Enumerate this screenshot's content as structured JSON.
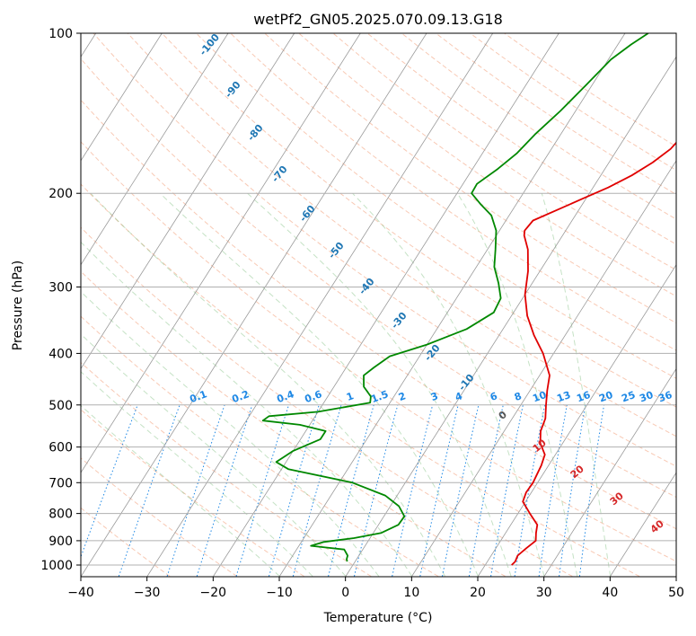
{
  "chart_data": {
    "type": "line",
    "title": "wetPf2_GN05.2025.070.09.13.G18",
    "xlabel": "Temperature (°C)",
    "ylabel": "Pressure (hPa)",
    "xlim": [
      -40,
      50
    ],
    "ylim": [
      1050,
      100
    ],
    "y_scale": "log",
    "x_ticks": [
      -40,
      -30,
      -20,
      -10,
      0,
      10,
      20,
      30,
      40,
      50
    ],
    "x_tick_labels": [
      "−40",
      "−30",
      "−20",
      "−10",
      "0",
      "10",
      "20",
      "30",
      "40",
      "50"
    ],
    "y_ticks": [
      100,
      200,
      300,
      400,
      500,
      600,
      700,
      800,
      900,
      1000
    ],
    "y_tick_labels": [
      "100",
      "200",
      "300",
      "400",
      "500",
      "600",
      "700",
      "800",
      "900",
      "1000"
    ],
    "grid": true,
    "series": [
      {
        "color": "#e00000",
        "points": [
          [
            1000,
            24.0
          ],
          [
            985,
            24.2
          ],
          [
            960,
            24.0
          ],
          [
            930,
            24.6
          ],
          [
            900,
            25.3
          ],
          [
            870,
            24.6
          ],
          [
            840,
            24.0
          ],
          [
            800,
            21.8
          ],
          [
            760,
            19.6
          ],
          [
            730,
            19.2
          ],
          [
            700,
            19.3
          ],
          [
            650,
            18.9
          ],
          [
            620,
            18.4
          ],
          [
            590,
            16.6
          ],
          [
            560,
            15.5
          ],
          [
            530,
            15.0
          ],
          [
            500,
            13.8
          ],
          [
            470,
            12.6
          ],
          [
            440,
            11.5
          ],
          [
            400,
            8.4
          ],
          [
            370,
            5.3
          ],
          [
            340,
            2.4
          ],
          [
            310,
            0.0
          ],
          [
            280,
            -1.8
          ],
          [
            255,
            -3.9
          ],
          [
            240,
            -5.8
          ],
          [
            235,
            -6.2
          ],
          [
            225,
            -5.9
          ],
          [
            215,
            -3.3
          ],
          [
            205,
            -0.6
          ],
          [
            195,
            2.3
          ],
          [
            185,
            4.7
          ],
          [
            175,
            6.6
          ],
          [
            165,
            8.0
          ],
          [
            155,
            8.6
          ],
          [
            145,
            8.9
          ],
          [
            138,
            8.8
          ],
          [
            130,
            9.3
          ],
          [
            122,
            10.6
          ],
          [
            114,
            12.2
          ],
          [
            107,
            13.1
          ],
          [
            100,
            13.6
          ]
        ]
      },
      {
        "color": "#008800",
        "points": [
          [
            985,
            -1.2
          ],
          [
            975,
            -1.5
          ],
          [
            960,
            -1.7
          ],
          [
            935,
            -2.8
          ],
          [
            920,
            -8.2
          ],
          [
            905,
            -6.6
          ],
          [
            890,
            -2.4
          ],
          [
            870,
            1.2
          ],
          [
            840,
            3.0
          ],
          [
            810,
            3.1
          ],
          [
            775,
            1.3
          ],
          [
            740,
            -1.8
          ],
          [
            700,
            -8.0
          ],
          [
            660,
            -19.0
          ],
          [
            640,
            -21.5
          ],
          [
            610,
            -20.0
          ],
          [
            580,
            -17.0
          ],
          [
            560,
            -17.0
          ],
          [
            545,
            -21.5
          ],
          [
            535,
            -27.5
          ],
          [
            525,
            -27.0
          ],
          [
            515,
            -20.0
          ],
          [
            495,
            -13.0
          ],
          [
            482,
            -13.5
          ],
          [
            462,
            -15.5
          ],
          [
            440,
            -16.6
          ],
          [
            425,
            -15.8
          ],
          [
            405,
            -14.5
          ],
          [
            385,
            -10.0
          ],
          [
            360,
            -5.5
          ],
          [
            335,
            -3.0
          ],
          [
            315,
            -3.3
          ],
          [
            295,
            -5.1
          ],
          [
            275,
            -7.3
          ],
          [
            255,
            -8.8
          ],
          [
            235,
            -10.5
          ],
          [
            220,
            -12.7
          ],
          [
            210,
            -15.3
          ],
          [
            200,
            -17.8
          ],
          [
            192,
            -17.9
          ],
          [
            180,
            -16.2
          ],
          [
            168,
            -14.8
          ],
          [
            155,
            -13.9
          ],
          [
            140,
            -12.3
          ],
          [
            125,
            -10.9
          ],
          [
            112,
            -9.6
          ],
          [
            105,
            -8.0
          ],
          [
            100,
            -6.5
          ]
        ]
      }
    ],
    "isotherm_labels": {
      "color": "#1f77b4",
      "values": [
        "-100",
        "-90",
        "-80",
        "-70",
        "-60",
        "-50",
        "-40",
        "-30",
        "-20",
        "-10"
      ]
    },
    "mixing_ratio_labels": {
      "color": "#1e88e5",
      "values": [
        "0.1",
        "0.2",
        "0.4",
        "0.6",
        "1",
        "1.5",
        "2",
        "3",
        "4",
        "6",
        "8",
        "10",
        "13",
        "16",
        "20",
        "25",
        "30",
        "36"
      ]
    },
    "moist_adiabat_labels": {
      "color": "#d62728",
      "values": [
        "0",
        "10",
        "20",
        "30",
        "40"
      ]
    }
  }
}
